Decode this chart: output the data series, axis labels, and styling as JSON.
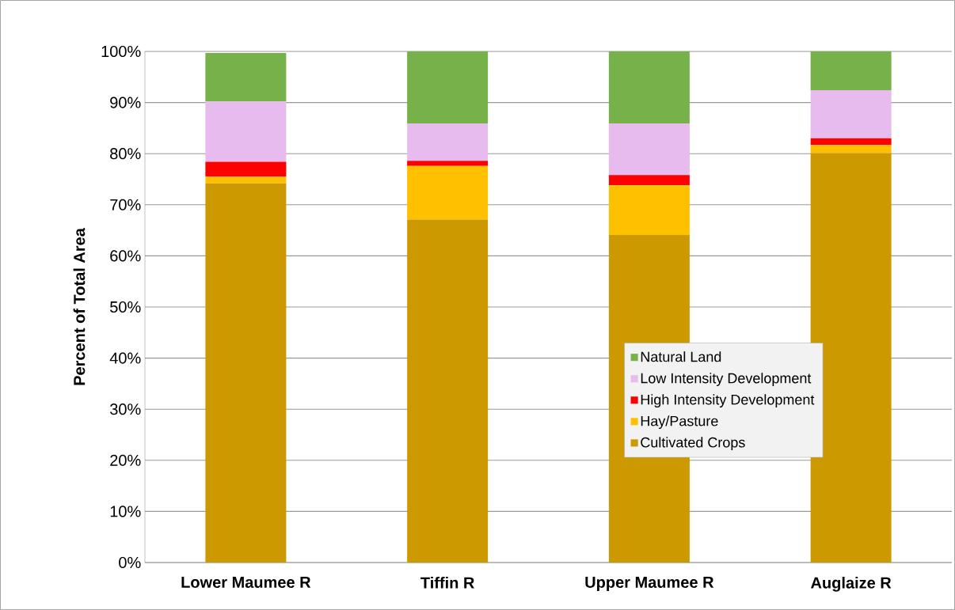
{
  "chart_data": {
    "type": "bar",
    "stacked": true,
    "ylabel": "Percent of Total Area",
    "categories": [
      "Lower Maumee R",
      "Tiffin R",
      "Upper Maumee R",
      "Auglaize R"
    ],
    "series": [
      {
        "name": "Cultivated Crops",
        "color": "#cc9900",
        "values": [
          74.2,
          67.1,
          64.1,
          80.1
        ]
      },
      {
        "name": "Hay/Pasture",
        "color": "#ffc000",
        "values": [
          1.3,
          10.5,
          9.7,
          1.6
        ]
      },
      {
        "name": "High Intensity Development",
        "color": "#ff0000",
        "values": [
          2.9,
          1.0,
          2.0,
          1.3
        ]
      },
      {
        "name": "Low Intensity Development",
        "color": "#e8bbef",
        "values": [
          11.8,
          7.3,
          10.1,
          9.4
        ]
      },
      {
        "name": "Natural Land",
        "color": "#76b14a",
        "values": [
          9.5,
          14.1,
          14.1,
          7.6
        ]
      }
    ],
    "ylim": [
      0,
      100
    ],
    "yticks": [
      {
        "value": 0,
        "label": "0%"
      },
      {
        "value": 10,
        "label": "10%"
      },
      {
        "value": 20,
        "label": "20%"
      },
      {
        "value": 30,
        "label": "30%"
      },
      {
        "value": 40,
        "label": "40%"
      },
      {
        "value": 50,
        "label": "50%"
      },
      {
        "value": 60,
        "label": "60%"
      },
      {
        "value": 70,
        "label": "70%"
      },
      {
        "value": 80,
        "label": "80%"
      },
      {
        "value": 90,
        "label": "90%"
      },
      {
        "value": 100,
        "label": "100%"
      }
    ],
    "grid": "y",
    "legend": "bottom right"
  }
}
